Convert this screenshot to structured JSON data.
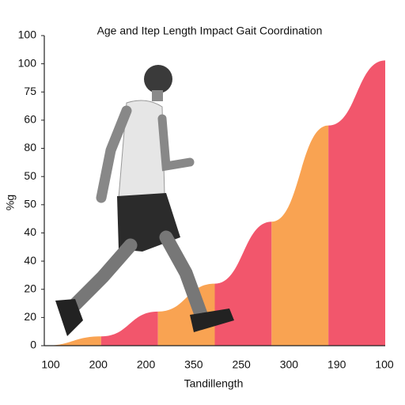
{
  "chart_data": {
    "type": "area",
    "title": "Age and Itep Length Impact Gait Coordination",
    "x_label": "Tandillength",
    "y_label": "%g",
    "y_labels": [
      "0",
      "20",
      "20",
      "40",
      "40",
      "50",
      "50",
      "80",
      "60",
      "75",
      "100",
      "100"
    ],
    "x_labels": [
      "100",
      "200",
      "200",
      "350",
      "250",
      "300",
      "190",
      "100"
    ],
    "ylim": [
      0,
      100
    ],
    "values": [
      0,
      3,
      11,
      20,
      40,
      71,
      92
    ],
    "colors": [
      "#f9a352",
      "#f2566c",
      "#f9a352",
      "#f2566c",
      "#f9a352",
      "#f2566c"
    ]
  }
}
